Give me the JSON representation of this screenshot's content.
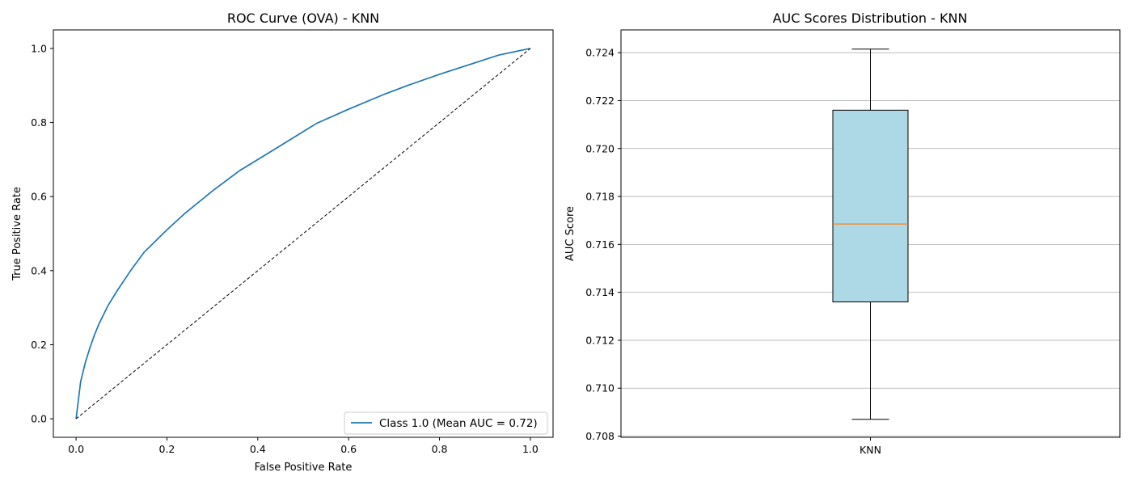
{
  "chart_data": [
    {
      "type": "line",
      "title": "ROC Curve (OVA) - KNN",
      "xlabel": "False Positive Rate",
      "ylabel": "True Positive Rate",
      "xlim": [
        -0.05,
        1.05
      ],
      "ylim": [
        -0.05,
        1.05
      ],
      "xticks": [
        0.0,
        0.2,
        0.4,
        0.6,
        0.8,
        1.0
      ],
      "yticks": [
        0.0,
        0.2,
        0.4,
        0.6,
        0.8,
        1.0
      ],
      "xtick_labels": [
        "0.0",
        "0.2",
        "0.4",
        "0.6",
        "0.8",
        "1.0"
      ],
      "ytick_labels": [
        "0.0",
        "0.2",
        "0.4",
        "0.6",
        "0.8",
        "1.0"
      ],
      "grid": false,
      "legend_position": "lower-right",
      "series": [
        {
          "name": "Class 1.0 (Mean AUC = 0.72)",
          "color": "#1f77b4",
          "style": "solid",
          "x": [
            0.0,
            0.01,
            0.02,
            0.03,
            0.04,
            0.05,
            0.07,
            0.09,
            0.12,
            0.15,
            0.2,
            0.24,
            0.3,
            0.36,
            0.44,
            0.53,
            0.6,
            0.68,
            0.73,
            0.8,
            0.87,
            0.93,
            1.0
          ],
          "y": [
            0.0,
            0.1,
            0.15,
            0.19,
            0.225,
            0.255,
            0.305,
            0.345,
            0.4,
            0.45,
            0.51,
            0.555,
            0.615,
            0.67,
            0.73,
            0.798,
            0.836,
            0.877,
            0.9,
            0.93,
            0.958,
            0.982,
            1.0
          ]
        },
        {
          "name": "",
          "color": "#000000",
          "style": "dashed",
          "x": [
            0.0,
            1.0
          ],
          "y": [
            0.0,
            1.0
          ]
        }
      ]
    },
    {
      "type": "box",
      "title": "AUC Scores Distribution - KNN",
      "xlabel": "",
      "ylabel": "AUC Score",
      "categories": [
        "KNN"
      ],
      "ylim": [
        0.70795,
        0.72495
      ],
      "yticks": [
        0.708,
        0.71,
        0.712,
        0.714,
        0.716,
        0.718,
        0.72,
        0.722,
        0.724
      ],
      "ytick_labels": [
        "0.708",
        "0.710",
        "0.712",
        "0.714",
        "0.716",
        "0.718",
        "0.720",
        "0.722",
        "0.724"
      ],
      "grid": true,
      "grid_axis": "y",
      "box_color": "#add8e6",
      "median_color": "#ff7f0e",
      "boxes": [
        {
          "whisker_low": 0.7087,
          "q1": 0.7136,
          "median": 0.71685,
          "q3": 0.7216,
          "whisker_high": 0.72415
        }
      ]
    }
  ]
}
